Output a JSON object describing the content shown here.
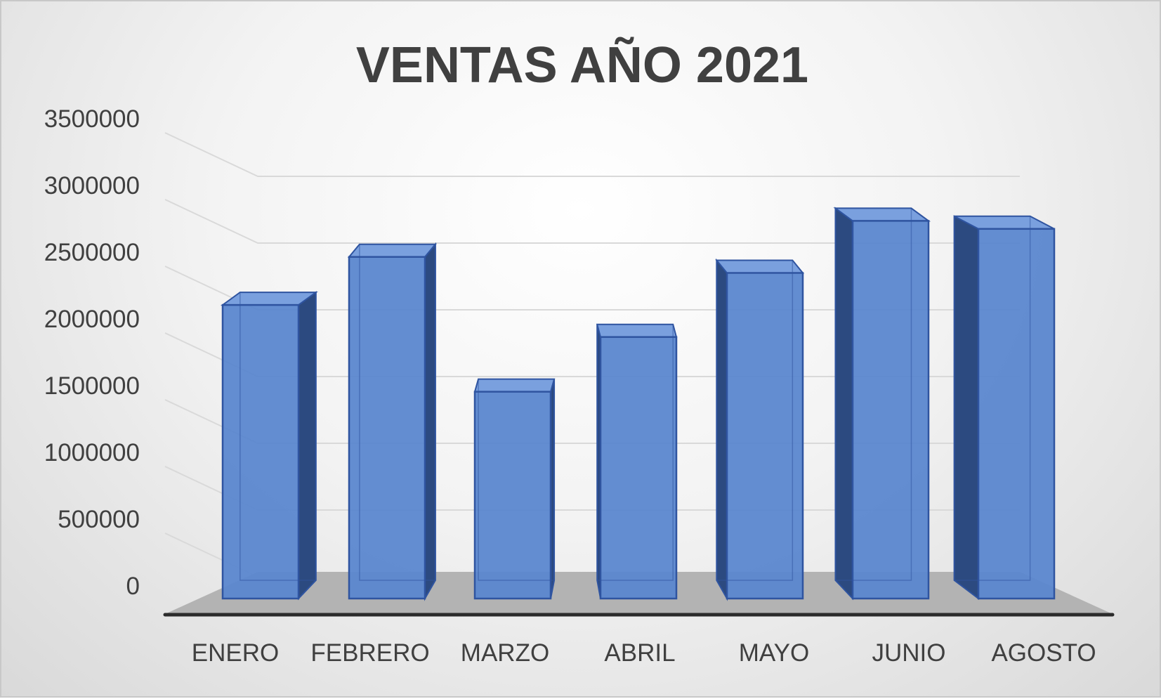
{
  "chart_data": {
    "type": "bar",
    "style": "3d-column",
    "title": "VENTAS AÑO 2021",
    "categories": [
      "ENERO",
      "FEBRERO",
      "MARZO",
      "ABRIL",
      "MAYO",
      "JUNIO",
      "AGOSTO"
    ],
    "values": [
      2210000,
      2570000,
      1560000,
      1970000,
      2450000,
      2840000,
      2780000
    ],
    "yticks": [
      "0",
      "500000",
      "1000000",
      "1500000",
      "2000000",
      "2500000",
      "3000000",
      "3500000"
    ],
    "ylim": [
      0,
      3500000
    ],
    "grid": true,
    "legend": false,
    "colors": {
      "bar_front": "#5b87cf",
      "bar_edge": "#2f54a0",
      "bar_top": "#7aa0de",
      "bar_side": "#2c4a80",
      "floor": "#b3b3b3",
      "axis": "#2b2b2b",
      "grid": "#d9d9d9",
      "text": "#404040"
    }
  }
}
